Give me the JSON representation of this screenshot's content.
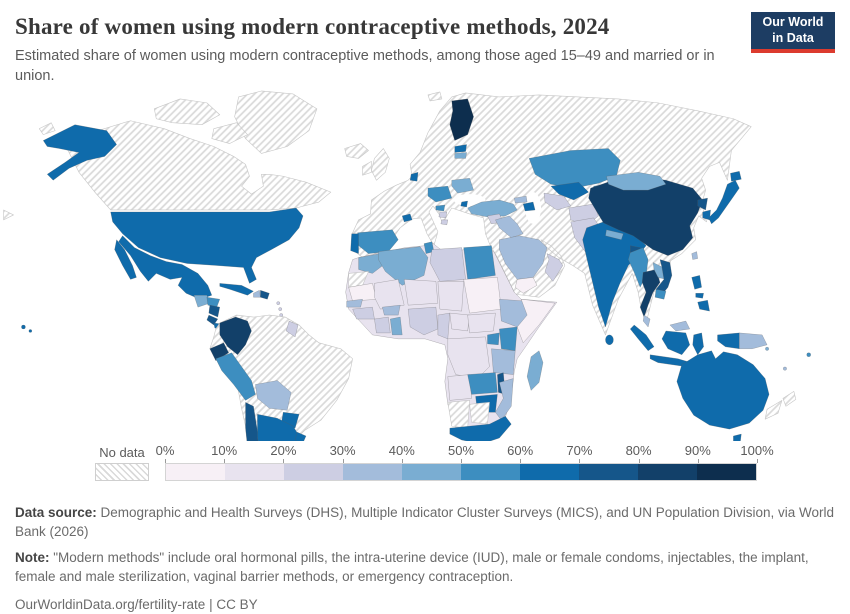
{
  "header": {
    "title": "Share of women using modern contraceptive methods, 2024",
    "subtitle": "Estimated share of women using modern contraceptive methods, among those aged 15–49 and married or in union.",
    "logo": {
      "line1": "Our World",
      "line2": "in Data",
      "bg_color": "#1d3d63",
      "stripe_color": "#dc3b2e"
    }
  },
  "legend": {
    "no_data_label": "No data",
    "ticks": [
      "0%",
      "10%",
      "20%",
      "30%",
      "40%",
      "50%",
      "60%",
      "70%",
      "80%",
      "90%",
      "100%"
    ],
    "bins": [
      {
        "range": "0-10%",
        "color": "#f7f0f6"
      },
      {
        "range": "10-20%",
        "color": "#e8e3ef"
      },
      {
        "range": "20-30%",
        "color": "#cdcee3"
      },
      {
        "range": "30-40%",
        "color": "#a3bcdb"
      },
      {
        "range": "40-50%",
        "color": "#7aadd2"
      },
      {
        "range": "50-60%",
        "color": "#3d8ec0"
      },
      {
        "range": "60-70%",
        "color": "#0f6bab"
      },
      {
        "range": "70-80%",
        "color": "#15568a"
      },
      {
        "range": "80-90%",
        "color": "#124069"
      },
      {
        "range": "90-100%",
        "color": "#0d2e4e"
      }
    ]
  },
  "footer": {
    "data_source_label": "Data source:",
    "data_source_text": " Demographic and Health Surveys (DHS), Multiple Indicator Cluster Surveys (MICS), and UN Population Division, via World Bank (2026)",
    "note_label": "Note:",
    "note_text": " \"Modern methods\" include oral hormonal pills, the intra-uterine device (IUD), male or female condoms, injectables, the implant, female and male sterilization, vaginal barrier methods, or emergency contraception.",
    "citation": "OurWorldinData.org/fertility-rate | CC BY"
  },
  "chart_data": {
    "type": "choropleth_map",
    "title": "Share of women using modern contraceptive methods, 2024",
    "unit": "%",
    "scale": {
      "min": 0,
      "max": 100,
      "bin_width": 10,
      "no_data_pattern": "diagonal-hatch"
    },
    "regions": [
      {
        "name": "Canada",
        "band": "no-data"
      },
      {
        "name": "Greenland",
        "band": "no-data"
      },
      {
        "name": "United States",
        "band": "60-70%"
      },
      {
        "name": "Mexico",
        "band": "60-70%"
      },
      {
        "name": "Guatemala",
        "band": "40-50%"
      },
      {
        "name": "Honduras",
        "band": "50-60%"
      },
      {
        "name": "Nicaragua",
        "band": "70-80%"
      },
      {
        "name": "Costa Rica",
        "band": "70-80%"
      },
      {
        "name": "Panama",
        "band": "60-70%"
      },
      {
        "name": "Cuba",
        "band": "60-70%"
      },
      {
        "name": "Haiti",
        "band": "30-40%"
      },
      {
        "name": "Dominican Republic",
        "band": "70-80%"
      },
      {
        "name": "Lesser Antilles",
        "band": "20-30%"
      },
      {
        "name": "Colombia",
        "band": "80-90%"
      },
      {
        "name": "Venezuela",
        "band": "no-data"
      },
      {
        "name": "Guyana",
        "band": "20-30%"
      },
      {
        "name": "Suriname",
        "band": "no-data"
      },
      {
        "name": "Ecuador",
        "band": "80-90%"
      },
      {
        "name": "Peru",
        "band": "50-60%"
      },
      {
        "name": "Brazil",
        "band": "no-data"
      },
      {
        "name": "Bolivia",
        "band": "30-40%"
      },
      {
        "name": "Paraguay",
        "band": "60-70%"
      },
      {
        "name": "Uruguay",
        "band": "60-70%"
      },
      {
        "name": "Argentina",
        "band": "60-70%"
      },
      {
        "name": "Chile",
        "band": "70-80%"
      },
      {
        "name": "Iceland",
        "band": "no-data"
      },
      {
        "name": "United Kingdom",
        "band": "no-data"
      },
      {
        "name": "Ireland",
        "band": "no-data"
      },
      {
        "name": "Norway",
        "band": "no-data"
      },
      {
        "name": "Sweden",
        "band": "no-data"
      },
      {
        "name": "Finland",
        "band": "90-100%"
      },
      {
        "name": "Estonia",
        "band": "60-70%"
      },
      {
        "name": "Latvia",
        "band": "40-50%"
      },
      {
        "name": "Denmark",
        "band": "60-70%"
      },
      {
        "name": "Poland",
        "band": "50-60%"
      },
      {
        "name": "Belarus",
        "band": "40-50%"
      },
      {
        "name": "Ukraine",
        "band": "no-data"
      },
      {
        "name": "Moldova",
        "band": "60-70%"
      },
      {
        "name": "Hungary",
        "band": "50-60%"
      },
      {
        "name": "Serbia",
        "band": "20-30%"
      },
      {
        "name": "Albania",
        "band": "20-30%"
      },
      {
        "name": "France",
        "band": "no-data"
      },
      {
        "name": "Germany",
        "band": "no-data"
      },
      {
        "name": "Italy",
        "band": "no-data"
      },
      {
        "name": "Spain",
        "band": "50-60%"
      },
      {
        "name": "Portugal",
        "band": "60-70%"
      },
      {
        "name": "Switzerland",
        "band": "60-70%"
      },
      {
        "name": "Russia",
        "band": "no-data"
      },
      {
        "name": "Turkey",
        "band": "40-50%"
      },
      {
        "name": "Georgia",
        "band": "30-40%"
      },
      {
        "name": "Azerbaijan",
        "band": "60-70%"
      },
      {
        "name": "Syria",
        "band": "20-30%"
      },
      {
        "name": "Iraq",
        "band": "30-40%"
      },
      {
        "name": "Iran",
        "band": "no-data"
      },
      {
        "name": "Saudi Arabia",
        "band": "30-40%"
      },
      {
        "name": "Yemen",
        "band": "0-10%"
      },
      {
        "name": "Oman",
        "band": "20-30%"
      },
      {
        "name": "Kazakhstan",
        "band": "50-60%"
      },
      {
        "name": "Uzbekistan",
        "band": "60-70%"
      },
      {
        "name": "Turkmenistan",
        "band": "20-30%"
      },
      {
        "name": "Kyrgyzstan",
        "band": "50-60%"
      },
      {
        "name": "Tajikistan",
        "band": "40-50%"
      },
      {
        "name": "Afghanistan",
        "band": "20-30%"
      },
      {
        "name": "Pakistan",
        "band": "20-30%"
      },
      {
        "name": "India",
        "band": "60-70%"
      },
      {
        "name": "Nepal",
        "band": "40-50%"
      },
      {
        "name": "Bangladesh",
        "band": "70-80%"
      },
      {
        "name": "Sri Lanka",
        "band": "60-70%"
      },
      {
        "name": "China",
        "band": "80-90%"
      },
      {
        "name": "Mongolia",
        "band": "40-50%"
      },
      {
        "name": "North Korea",
        "band": "70-80%"
      },
      {
        "name": "South Korea",
        "band": "60-70%"
      },
      {
        "name": "Japan",
        "band": "60-70%"
      },
      {
        "name": "Taiwan",
        "band": "30-40%"
      },
      {
        "name": "Myanmar",
        "band": "50-60%"
      },
      {
        "name": "Thailand",
        "band": "80-90%"
      },
      {
        "name": "Laos",
        "band": "40-50%"
      },
      {
        "name": "Vietnam",
        "band": "70-80%"
      },
      {
        "name": "Cambodia",
        "band": "50-60%"
      },
      {
        "name": "Malaysia",
        "band": "30-40%"
      },
      {
        "name": "Indonesia",
        "band": "60-70%"
      },
      {
        "name": "Philippines",
        "band": "60-70%"
      },
      {
        "name": "Papua New Guinea",
        "band": "30-40%"
      },
      {
        "name": "Morocco",
        "band": "40-50%"
      },
      {
        "name": "Western Sahara",
        "band": "no-data"
      },
      {
        "name": "Algeria",
        "band": "40-50%"
      },
      {
        "name": "Tunisia",
        "band": "50-60%"
      },
      {
        "name": "Libya",
        "band": "20-30%"
      },
      {
        "name": "Egypt",
        "band": "50-60%"
      },
      {
        "name": "Mauritania",
        "band": "0-10%"
      },
      {
        "name": "Mali",
        "band": "10-20%"
      },
      {
        "name": "Niger",
        "band": "10-20%"
      },
      {
        "name": "Chad",
        "band": "10-20%"
      },
      {
        "name": "Sudan",
        "band": "0-10%"
      },
      {
        "name": "Senegal",
        "band": "30-40%"
      },
      {
        "name": "Guinea",
        "band": "20-30%"
      },
      {
        "name": "Ivory Coast",
        "band": "20-30%"
      },
      {
        "name": "Ghana",
        "band": "40-50%"
      },
      {
        "name": "Burkina Faso",
        "band": "30-40%"
      },
      {
        "name": "Nigeria",
        "band": "20-30%"
      },
      {
        "name": "Cameroon",
        "band": "20-30%"
      },
      {
        "name": "Central African Republic",
        "band": "10-20%"
      },
      {
        "name": "South Sudan",
        "band": "10-20%"
      },
      {
        "name": "Ethiopia",
        "band": "30-40%"
      },
      {
        "name": "Somalia",
        "band": "0-10%"
      },
      {
        "name": "Uganda",
        "band": "50-60%"
      },
      {
        "name": "Kenya",
        "band": "50-60%"
      },
      {
        "name": "Democratic Republic of Congo",
        "band": "10-20%"
      },
      {
        "name": "Tanzania",
        "band": "30-40%"
      },
      {
        "name": "Angola",
        "band": "10-20%"
      },
      {
        "name": "Zambia",
        "band": "50-60%"
      },
      {
        "name": "Malawi",
        "band": "70-80%"
      },
      {
        "name": "Mozambique",
        "band": "30-40%"
      },
      {
        "name": "Zimbabwe",
        "band": "60-70%"
      },
      {
        "name": "Namibia",
        "band": "no-data"
      },
      {
        "name": "Botswana",
        "band": "no-data"
      },
      {
        "name": "South Africa",
        "band": "60-70%"
      },
      {
        "name": "Madagascar",
        "band": "40-50%"
      },
      {
        "name": "Australia",
        "band": "60-70%"
      },
      {
        "name": "New Zealand",
        "band": "no-data"
      },
      {
        "name": "Papua (Indonesia)",
        "band": "60-70%"
      },
      {
        "name": "Fiji",
        "band": "50-60%"
      },
      {
        "name": "Solomon Islands",
        "band": "40-50%"
      },
      {
        "name": "Vanuatu",
        "band": "30-40%"
      }
    ]
  }
}
